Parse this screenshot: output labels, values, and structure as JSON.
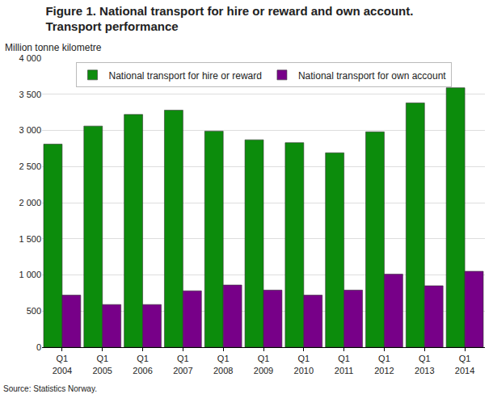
{
  "chart_data": {
    "type": "bar",
    "title": [
      "Figure 1. National transport for hire or reward and own account.",
      "Transport performance"
    ],
    "y_label": "Million tonne kilometre",
    "source": "Source: Statistics Norway.",
    "categories": [
      "Q1 2004",
      "Q1 2005",
      "Q1 2006",
      "Q1 2007",
      "Q1 2008",
      "Q1 2009",
      "Q1 2010",
      "Q1 2011",
      "Q1 2012",
      "Q1 2013",
      "Q1 2014"
    ],
    "series": [
      {
        "name": "National transport for hire or reward",
        "color": "#0c8c0c",
        "values": [
          2810,
          3060,
          3220,
          3280,
          2990,
          2870,
          2830,
          2690,
          2980,
          3380,
          3590
        ]
      },
      {
        "name": "National transport for own account",
        "color": "#770088",
        "values": [
          720,
          590,
          590,
          780,
          860,
          790,
          720,
          790,
          1010,
          850,
          1050
        ]
      }
    ],
    "ylim": [
      0,
      4000
    ],
    "yticks": [
      0,
      500,
      {
        "value": 1000,
        "label": "1 000"
      },
      {
        "value": 1500,
        "label": "1 500"
      },
      {
        "value": 2000,
        "label": "2 000"
      },
      {
        "value": 2500,
        "label": "2 500"
      },
      {
        "value": 3000,
        "label": "3 000"
      },
      {
        "value": 3500,
        "label": "3 500"
      },
      {
        "value": 4000,
        "label": "4 000"
      }
    ],
    "grid": true,
    "legend": "top"
  }
}
